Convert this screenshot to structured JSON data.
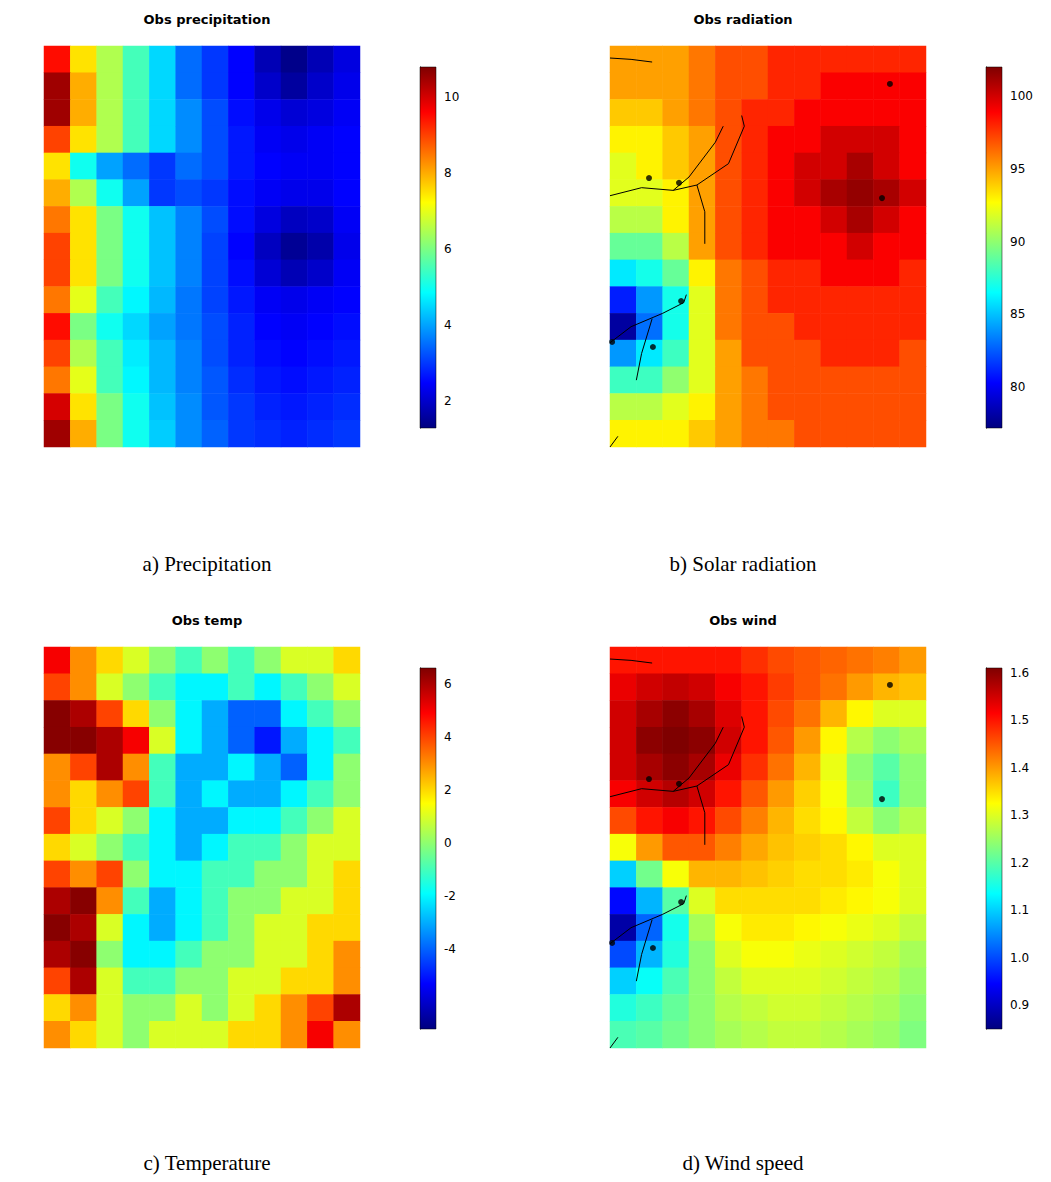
{
  "chart_data": [
    {
      "type": "heatmap",
      "title": "Obs precipitation",
      "caption": "a) Precipitation",
      "colorbar_range": [
        1.3,
        10.8
      ],
      "colorbar_ticks": [
        2,
        4,
        6,
        8,
        10
      ],
      "cells": [
        [
          9.5,
          7.5,
          6.5,
          5.5,
          4.5,
          3.5,
          3.0,
          2.5,
          1.8,
          1.4,
          1.8,
          2.2
        ],
        [
          10.5,
          8,
          6.5,
          5.5,
          4.5,
          3.5,
          3,
          2.5,
          2,
          1.6,
          2,
          2.3
        ],
        [
          10.5,
          8,
          6.5,
          5.5,
          4.5,
          3.8,
          3.2,
          2.6,
          2.3,
          2.1,
          2.2,
          2.4
        ],
        [
          9,
          7.5,
          6.5,
          5.5,
          4.5,
          3.8,
          3.2,
          2.7,
          2.4,
          2.3,
          2.4,
          2.5
        ],
        [
          7.5,
          5,
          4,
          3.5,
          3,
          3.5,
          3.2,
          2.7,
          2.5,
          2.4,
          2.4,
          2.5
        ],
        [
          8,
          6.5,
          5,
          4,
          3,
          3.2,
          3,
          2.6,
          2.4,
          2.3,
          2.3,
          2.5
        ],
        [
          8.5,
          7.5,
          6,
          5,
          4.3,
          3.7,
          3.2,
          2.6,
          2.2,
          1.9,
          2.0,
          2.4
        ],
        [
          9,
          7.5,
          6,
          5,
          4.3,
          3.7,
          3.1,
          2.5,
          1.9,
          1.5,
          1.7,
          2.3
        ],
        [
          9,
          7.5,
          6,
          5,
          4.3,
          3.7,
          3.1,
          2.6,
          2.1,
          1.8,
          2,
          2.4
        ],
        [
          8.5,
          7,
          5.5,
          4.8,
          4.2,
          3.6,
          3.1,
          2.7,
          2.4,
          2.3,
          2.4,
          2.5
        ],
        [
          9.5,
          6,
          5,
          4.5,
          4,
          3.6,
          3.2,
          2.8,
          2.5,
          2.4,
          2.5,
          2.6
        ],
        [
          9,
          6.5,
          5.5,
          4.7,
          4.2,
          3.7,
          3.2,
          2.8,
          2.6,
          2.5,
          2.6,
          2.7
        ],
        [
          8.5,
          7,
          5.5,
          4.8,
          4.2,
          3.7,
          3.3,
          2.9,
          2.7,
          2.6,
          2.7,
          2.8
        ],
        [
          10,
          7.5,
          6,
          5,
          4.3,
          3.8,
          3.3,
          3,
          2.8,
          2.7,
          2.8,
          2.9
        ],
        [
          10.5,
          8,
          6,
          5,
          4.4,
          3.8,
          3.4,
          3,
          2.9,
          2.8,
          2.9,
          3
        ]
      ]
    },
    {
      "type": "heatmap",
      "title": "Obs radiation",
      "caption": "b) Solar radiation",
      "colorbar_range": [
        77.2,
        102
      ],
      "colorbar_ticks": [
        80,
        85,
        90,
        95,
        100
      ],
      "marker": "circle",
      "points": [
        [
          1.48,
          4.94
        ],
        [
          2.62,
          5.12
        ],
        [
          10.63,
          1.42
        ],
        [
          10.33,
          5.69
        ],
        [
          2.7,
          9.54
        ],
        [
          1.63,
          11.26
        ],
        [
          0.08,
          11.07
        ]
      ],
      "coastlines": [
        [
          [
            0,
            0.45
          ],
          [
            0.8,
            0.5
          ],
          [
            1.6,
            0.6
          ]
        ],
        [
          [
            0,
            5.6
          ],
          [
            1.2,
            5.3
          ],
          [
            2.4,
            5.4
          ],
          [
            3.3,
            5.2
          ],
          [
            3.6,
            6.2
          ],
          [
            3.6,
            7.4
          ]
        ],
        [
          [
            3.3,
            5.2
          ],
          [
            4.5,
            4.4
          ],
          [
            5.1,
            3.0
          ],
          [
            5.0,
            2.6
          ]
        ],
        [
          [
            2.4,
            5.4
          ],
          [
            3.0,
            4.9
          ],
          [
            4.0,
            3.6
          ],
          [
            4.3,
            3.0
          ]
        ],
        [
          [
            0,
            11.1
          ],
          [
            0.8,
            10.5
          ],
          [
            2.0,
            10.0
          ],
          [
            2.8,
            9.6
          ],
          [
            2.9,
            9.3
          ]
        ],
        [
          [
            1.6,
            10.2
          ],
          [
            1.2,
            11.5
          ],
          [
            1.0,
            12.5
          ]
        ],
        [
          [
            0,
            15
          ],
          [
            0.3,
            14.6
          ]
        ]
      ],
      "cells": [
        [
          95,
          95,
          95,
          96,
          97,
          97,
          98,
          98,
          98,
          98,
          98,
          98
        ],
        [
          95,
          95,
          95,
          96,
          97,
          97,
          98,
          98,
          99,
          99,
          99,
          99
        ],
        [
          94,
          94,
          95,
          96,
          97,
          98,
          98,
          99,
          99,
          99,
          99,
          99
        ],
        [
          93,
          93,
          94,
          95,
          97,
          98,
          99,
          99,
          100,
          100,
          100,
          99
        ],
        [
          92,
          93,
          94,
          95,
          97,
          98,
          99,
          100,
          100,
          101,
          100,
          99
        ],
        [
          92,
          92,
          93,
          95,
          97,
          98,
          99,
          100,
          101,
          101.5,
          101,
          100
        ],
        [
          91,
          91,
          93,
          95,
          97,
          98,
          99,
          99,
          100,
          101,
          100,
          99
        ],
        [
          89,
          89,
          91,
          95,
          97,
          98,
          99,
          99,
          99,
          100,
          99,
          99
        ],
        [
          86,
          87,
          89,
          93,
          96,
          97,
          98,
          98,
          99,
          99,
          99,
          98
        ],
        [
          81,
          84,
          87,
          92,
          96,
          97,
          98,
          98,
          98,
          98,
          98,
          98
        ],
        [
          78,
          83,
          87,
          92,
          96,
          97,
          97,
          98,
          98,
          98,
          98,
          98
        ],
        [
          84,
          86,
          88,
          92,
          95,
          97,
          97,
          97,
          98,
          98,
          98,
          97
        ],
        [
          88,
          88,
          90,
          92,
          95,
          96,
          97,
          97,
          97,
          97,
          97,
          97
        ],
        [
          91,
          91,
          92,
          93,
          95,
          96,
          97,
          97,
          97,
          97,
          97,
          97
        ],
        [
          93,
          93,
          93,
          94,
          95,
          96,
          96,
          97,
          97,
          97,
          97,
          97
        ]
      ]
    },
    {
      "type": "heatmap",
      "title": "Obs temp",
      "caption": "c) Temperature",
      "colorbar_range": [
        -7.0,
        6.6
      ],
      "colorbar_ticks": [
        -4,
        -2,
        0,
        2,
        4,
        6
      ],
      "cells": [
        [
          5,
          3,
          2,
          1,
          0,
          -1,
          0,
          -1,
          0,
          1,
          1,
          2
        ],
        [
          4,
          3,
          1,
          0,
          -1,
          -2,
          -2,
          -1,
          -2,
          -1,
          0,
          1
        ],
        [
          6.5,
          6,
          4,
          2,
          0,
          -2,
          -3,
          -4,
          -4,
          -2,
          -1,
          0
        ],
        [
          6.5,
          6.5,
          6,
          5,
          1,
          -2,
          -3,
          -4,
          -5,
          -3,
          -2,
          -1
        ],
        [
          3,
          4,
          6,
          3,
          -1,
          -3,
          -3,
          -2,
          -3,
          -4,
          -2,
          0
        ],
        [
          3,
          2,
          3,
          4,
          -1,
          -3,
          -2,
          -3,
          -3,
          -2,
          -1,
          0
        ],
        [
          4,
          2,
          1,
          0,
          -2,
          -3,
          -3,
          -2,
          -2,
          -1,
          0,
          1
        ],
        [
          2,
          1,
          0,
          -1,
          -2,
          -3,
          -2,
          -1,
          -1,
          0,
          1,
          1
        ],
        [
          4,
          3,
          4,
          0,
          -2,
          -2,
          -1,
          -1,
          0,
          0,
          1,
          2
        ],
        [
          6,
          6.5,
          3,
          -1,
          -3,
          -2,
          -1,
          0,
          0,
          1,
          1,
          2
        ],
        [
          6.5,
          6,
          1,
          -2,
          -3,
          -2,
          -1,
          0,
          1,
          1,
          2,
          2
        ],
        [
          6,
          6.5,
          0,
          -2,
          -2,
          -1,
          0,
          0,
          1,
          1,
          2,
          3
        ],
        [
          4,
          6,
          1,
          -1,
          -1,
          0,
          0,
          1,
          1,
          2,
          2,
          3
        ],
        [
          2,
          3,
          1,
          0,
          0,
          1,
          0,
          1,
          2,
          3,
          4,
          6
        ],
        [
          3,
          2,
          1,
          0,
          1,
          1,
          1,
          2,
          2,
          3,
          5,
          3
        ]
      ]
    },
    {
      "type": "heatmap",
      "title": "Obs wind",
      "caption": "d) Wind speed",
      "colorbar_range": [
        0.85,
        1.61
      ],
      "colorbar_ticks": [
        0.9,
        {
          "value": 1,
          "label": "1.0"
        },
        1.1,
        1.2,
        1.3,
        1.4,
        1.5,
        1.6
      ],
      "marker": "circle",
      "points": [
        [
          1.48,
          4.94
        ],
        [
          2.62,
          5.12
        ],
        [
          10.63,
          1.42
        ],
        [
          10.33,
          5.69
        ],
        [
          2.7,
          9.54
        ],
        [
          1.63,
          11.26
        ],
        [
          0.08,
          11.07
        ]
      ],
      "coastlines": [
        [
          [
            0,
            0.45
          ],
          [
            0.8,
            0.5
          ],
          [
            1.6,
            0.6
          ]
        ],
        [
          [
            0,
            5.6
          ],
          [
            1.2,
            5.3
          ],
          [
            2.4,
            5.4
          ],
          [
            3.3,
            5.2
          ],
          [
            3.6,
            6.2
          ],
          [
            3.6,
            7.4
          ]
        ],
        [
          [
            3.3,
            5.2
          ],
          [
            4.5,
            4.4
          ],
          [
            5.1,
            3.0
          ],
          [
            5.0,
            2.6
          ]
        ],
        [
          [
            2.4,
            5.4
          ],
          [
            3.0,
            4.9
          ],
          [
            4.0,
            3.6
          ],
          [
            4.3,
            3.0
          ]
        ],
        [
          [
            0,
            11.1
          ],
          [
            0.8,
            10.5
          ],
          [
            2.0,
            10.0
          ],
          [
            2.8,
            9.6
          ],
          [
            2.9,
            9.3
          ]
        ],
        [
          [
            1.6,
            10.2
          ],
          [
            1.2,
            11.5
          ],
          [
            1.0,
            12.5
          ]
        ],
        [
          [
            0,
            15
          ],
          [
            0.3,
            14.6
          ]
        ]
      ],
      "cells": [
        [
          1.5,
          1.5,
          1.5,
          1.5,
          1.5,
          1.48,
          1.46,
          1.45,
          1.44,
          1.43,
          1.42,
          1.4
        ],
        [
          1.53,
          1.55,
          1.56,
          1.55,
          1.52,
          1.5,
          1.47,
          1.45,
          1.43,
          1.4,
          1.38,
          1.37
        ],
        [
          1.55,
          1.58,
          1.6,
          1.58,
          1.54,
          1.5,
          1.46,
          1.43,
          1.38,
          1.33,
          1.3,
          1.3
        ],
        [
          1.55,
          1.6,
          1.61,
          1.6,
          1.55,
          1.5,
          1.45,
          1.4,
          1.33,
          1.27,
          1.24,
          1.26
        ],
        [
          1.55,
          1.58,
          1.6,
          1.58,
          1.53,
          1.48,
          1.43,
          1.38,
          1.31,
          1.24,
          1.2,
          1.24
        ],
        [
          1.52,
          1.55,
          1.57,
          1.55,
          1.5,
          1.45,
          1.4,
          1.36,
          1.32,
          1.25,
          1.18,
          1.24
        ],
        [
          1.46,
          1.5,
          1.52,
          1.5,
          1.46,
          1.42,
          1.38,
          1.35,
          1.33,
          1.28,
          1.24,
          1.27
        ],
        [
          1.32,
          1.4,
          1.45,
          1.45,
          1.42,
          1.39,
          1.37,
          1.36,
          1.35,
          1.33,
          1.3,
          1.3
        ],
        [
          1.1,
          1.22,
          1.32,
          1.38,
          1.38,
          1.37,
          1.36,
          1.35,
          1.35,
          1.34,
          1.32,
          1.3
        ],
        [
          0.95,
          1.08,
          1.2,
          1.3,
          1.35,
          1.35,
          1.35,
          1.35,
          1.34,
          1.33,
          1.32,
          1.3
        ],
        [
          0.88,
          1.02,
          1.15,
          1.26,
          1.32,
          1.34,
          1.34,
          1.33,
          1.32,
          1.31,
          1.3,
          1.28
        ],
        [
          1.0,
          1.08,
          1.16,
          1.24,
          1.3,
          1.32,
          1.32,
          1.31,
          1.3,
          1.29,
          1.28,
          1.26
        ],
        [
          1.1,
          1.14,
          1.19,
          1.24,
          1.28,
          1.3,
          1.3,
          1.3,
          1.29,
          1.28,
          1.27,
          1.25
        ],
        [
          1.16,
          1.18,
          1.21,
          1.24,
          1.27,
          1.28,
          1.29,
          1.29,
          1.28,
          1.27,
          1.26,
          1.24
        ],
        [
          1.19,
          1.2,
          1.22,
          1.24,
          1.26,
          1.27,
          1.28,
          1.28,
          1.27,
          1.26,
          1.25,
          1.23
        ]
      ]
    }
  ]
}
